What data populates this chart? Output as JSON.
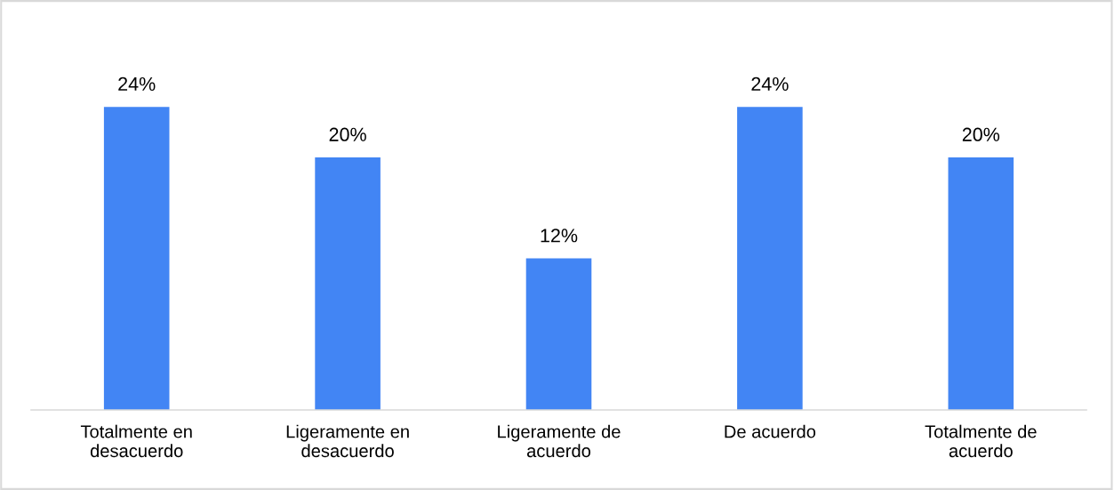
{
  "chart_data": {
    "type": "bar",
    "categories": [
      "Totalmente en desacuerdo",
      "Ligeramente en desacuerdo",
      "Ligeramente de acuerdo",
      "De acuerdo",
      "Totalmente de acuerdo"
    ],
    "values": [
      24,
      20,
      12,
      24,
      20
    ],
    "value_labels": [
      "24%",
      "20%",
      "12%",
      "24%",
      "20%"
    ],
    "color": "#4285f4"
  }
}
